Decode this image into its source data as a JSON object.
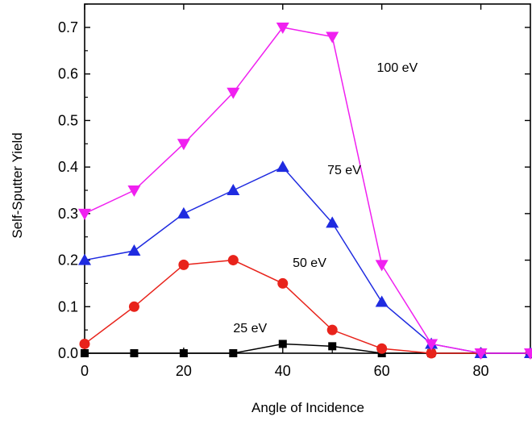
{
  "chart_data": {
    "type": "line",
    "title": "",
    "xlabel": "Angle of Incidence",
    "ylabel": "Self-Sputter Yield",
    "xlim": [
      0,
      90
    ],
    "ylim": [
      0,
      0.75
    ],
    "xticks": [
      0,
      20,
      40,
      60,
      80
    ],
    "yticks": [
      0.0,
      0.1,
      0.2,
      0.3,
      0.4,
      0.5,
      0.6,
      0.7
    ],
    "ytick_labels": [
      "0.0",
      "0.1",
      "0.2",
      "0.3",
      "0.4",
      "0.5",
      "0.6",
      "0.7"
    ],
    "grid": false,
    "legend": "none",
    "series": [
      {
        "name": "25 eV",
        "color": "#000000",
        "marker": "square",
        "x": [
          0,
          10,
          20,
          30,
          40,
          50,
          60,
          70,
          80,
          90
        ],
        "y": [
          0.0,
          0.0,
          0.0,
          0.0,
          0.02,
          0.015,
          0.0,
          0.0,
          0.0,
          0.0
        ],
        "label_at": [
          30,
          0.045
        ]
      },
      {
        "name": "50 eV",
        "color": "#e8231b",
        "marker": "circle",
        "x": [
          0,
          10,
          20,
          30,
          40,
          50,
          60,
          70,
          80,
          90
        ],
        "y": [
          0.02,
          0.1,
          0.19,
          0.2,
          0.15,
          0.05,
          0.01,
          0.0,
          0.0,
          0.0
        ],
        "label_at": [
          42,
          0.185
        ]
      },
      {
        "name": "75 eV",
        "color": "#1f2be0",
        "marker": "triangle-up",
        "x": [
          0,
          10,
          20,
          30,
          40,
          50,
          60,
          70,
          80,
          90
        ],
        "y": [
          0.2,
          0.22,
          0.3,
          0.35,
          0.4,
          0.28,
          0.11,
          0.02,
          0.0,
          0.0
        ],
        "label_at": [
          49,
          0.385
        ]
      },
      {
        "name": "100 eV",
        "color": "#f020f0",
        "marker": "triangle-down",
        "x": [
          0,
          10,
          20,
          30,
          40,
          50,
          60,
          70,
          80,
          90
        ],
        "y": [
          0.3,
          0.35,
          0.45,
          0.56,
          0.7,
          0.68,
          0.19,
          0.02,
          0.0,
          0.0
        ],
        "label_at": [
          59,
          0.605
        ]
      }
    ]
  }
}
